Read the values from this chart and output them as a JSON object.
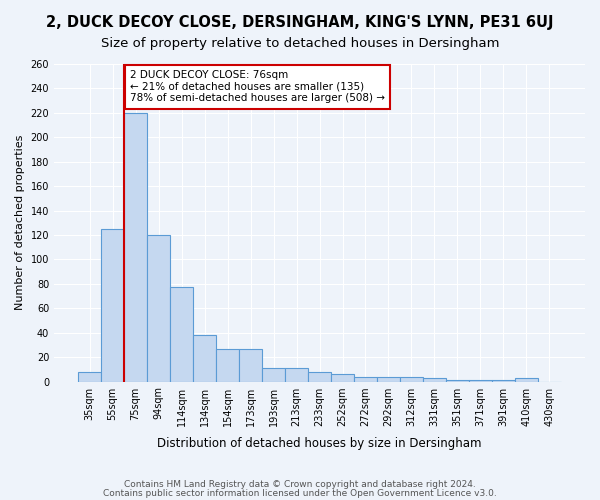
{
  "title1": "2, DUCK DECOY CLOSE, DERSINGHAM, KING'S LYNN, PE31 6UJ",
  "title2": "Size of property relative to detached houses in Dersingham",
  "xlabel": "Distribution of detached houses by size in Dersingham",
  "ylabel": "Number of detached properties",
  "categories": [
    "35sqm",
    "55sqm",
    "75sqm",
    "94sqm",
    "114sqm",
    "134sqm",
    "154sqm",
    "173sqm",
    "193sqm",
    "213sqm",
    "233sqm",
    "252sqm",
    "272sqm",
    "292sqm",
    "312sqm",
    "331sqm",
    "351sqm",
    "371sqm",
    "391sqm",
    "410sqm",
    "430sqm"
  ],
  "bar_values": [
    8,
    125,
    220,
    120,
    77,
    38,
    27,
    27,
    11,
    11,
    8,
    6,
    4,
    4,
    4,
    3,
    1,
    1,
    1,
    3,
    0
  ],
  "bar_color": "#c5d8f0",
  "bar_edge_color": "#5b9bd5",
  "red_line_index": 2,
  "red_line_color": "#cc0000",
  "annotation_text": "2 DUCK DECOY CLOSE: 76sqm\n← 21% of detached houses are smaller (135)\n78% of semi-detached houses are larger (508) →",
  "annotation_box_color": "#ffffff",
  "annotation_box_edge_color": "#cc0000",
  "ylim": [
    0,
    260
  ],
  "yticks": [
    0,
    20,
    40,
    60,
    80,
    100,
    120,
    140,
    160,
    180,
    200,
    220,
    240,
    260
  ],
  "footer1": "Contains HM Land Registry data © Crown copyright and database right 2024.",
  "footer2": "Contains public sector information licensed under the Open Government Licence v3.0.",
  "bg_color": "#eef3fa",
  "grid_color": "#ffffff",
  "title1_fontsize": 10.5,
  "title2_fontsize": 9.5,
  "ylabel_fontsize": 8,
  "xlabel_fontsize": 8.5,
  "annotation_fontsize": 7.5,
  "tick_fontsize": 7,
  "footer_fontsize": 6.5
}
